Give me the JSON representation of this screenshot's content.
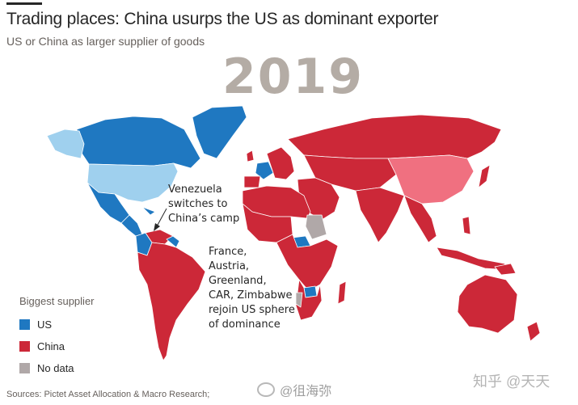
{
  "header": {
    "title": "Trading places: China usurps the US as dominant exporter",
    "subtitle": "US or China as larger supplier of goods"
  },
  "year": "2019",
  "annotations": {
    "venezuela": [
      "Venezuela",
      "switches to",
      "China’s camp"
    ],
    "us_sphere": [
      "France,",
      "Austria,",
      "Greenland,",
      "CAR, Zimbabwe",
      "rejoin US sphere",
      "of dominance"
    ]
  },
  "legend": {
    "title": "Biggest supplier",
    "items": [
      {
        "label": "US",
        "color": "#1f78c1"
      },
      {
        "label": "China",
        "color": "#cc2838"
      },
      {
        "label": "No data",
        "color": "#b0a8a8"
      }
    ]
  },
  "colors": {
    "us": "#1f78c1",
    "us_self": "#9fd0ee",
    "china": "#cc2838",
    "china_self": "#f07080",
    "no_data": "#b0a8a8",
    "border": "#ffffff"
  },
  "sources": "Sources: Pictet Asset Allocation & Macro Research;",
  "watermarks": {
    "weibo": "@徂海弥",
    "zhihu": "知乎 @天天"
  }
}
